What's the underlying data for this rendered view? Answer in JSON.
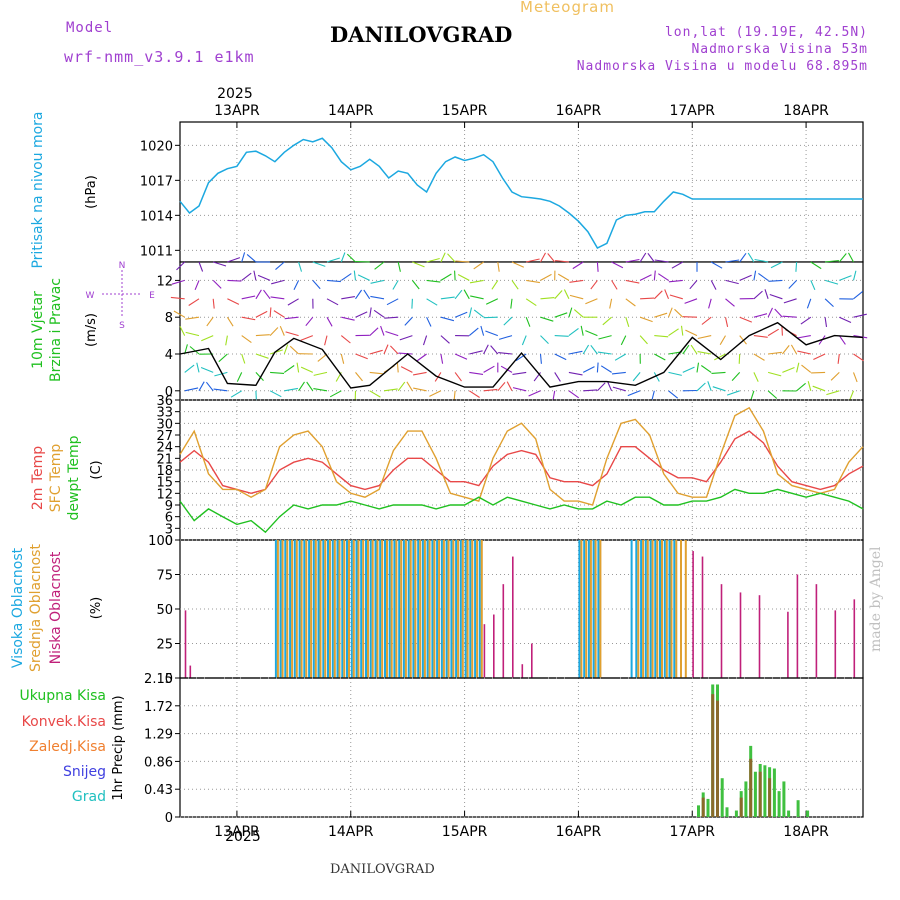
{
  "header": {
    "title": "DANILOVGRAD",
    "subtitle": "Meteogram",
    "model_label": "Model",
    "model_name": "wrf-nmm_v3.9.1 e1km",
    "info": [
      "lon,lat (19.19E, 42.5N)",
      "Nadmorska Visina 53m",
      "Nadmorska Visina u modelu 68.895m"
    ]
  },
  "footer": {
    "station": "DANILOVGRAD",
    "credit": "made by Angel"
  },
  "time_axis": {
    "year": "2025",
    "labels": [
      "13APR",
      "14APR",
      "15APR",
      "16APR",
      "17APR",
      "18APR"
    ],
    "start": "2025-04-12 12:00",
    "end": "2025-04-18 12:00"
  },
  "colors": {
    "pressure": "#1ca8e0",
    "temp2m": "#e84848",
    "sfc": "#e0a030",
    "dewpt": "#20c020",
    "wind": "#000000",
    "high_cloud": "#1ca8e0",
    "mid_cloud": "#e0a030",
    "low_cloud": "#c0207a",
    "total_precip": "#40c040",
    "conv_precip": "#e84848"
  },
  "chart_data": [
    {
      "type": "line",
      "ylabel": [
        "Pritisak na nivou mora",
        "(hPa)"
      ],
      "yticks": [
        1011,
        1014,
        1017,
        1020
      ],
      "ylim": [
        1010,
        1022
      ],
      "series": [
        {
          "name": "Pritisak na nivou mora",
          "x_hours": [
            0,
            2,
            4,
            6,
            8,
            10,
            12,
            14,
            16,
            18,
            20,
            22,
            24,
            26,
            28,
            30,
            32,
            34,
            36,
            38,
            40,
            42,
            44,
            46,
            48,
            50,
            52,
            54,
            56,
            58,
            60,
            62,
            64,
            66,
            68,
            70,
            72,
            74,
            76,
            78,
            80,
            82,
            84,
            86,
            88,
            90,
            92,
            94,
            96,
            98,
            100,
            102,
            104,
            106,
            108,
            110,
            112,
            114,
            116,
            118,
            120,
            122,
            124,
            126,
            128,
            130,
            132,
            134,
            136,
            138,
            140,
            142,
            144
          ],
          "values": [
            1015.2,
            1014.2,
            1014.8,
            1016.8,
            1017.6,
            1018.0,
            1018.2,
            1019.4,
            1019.5,
            1019.1,
            1018.6,
            1019.4,
            1020.0,
            1020.5,
            1020.3,
            1020.6,
            1019.8,
            1018.6,
            1017.9,
            1018.2,
            1018.8,
            1018.2,
            1017.2,
            1017.8,
            1017.6,
            1016.6,
            1016.0,
            1017.6,
            1018.6,
            1019.0,
            1018.7,
            1018.9,
            1019.2,
            1018.6,
            1017.2,
            1016.0,
            1015.6,
            1015.5,
            1015.4,
            1015.2,
            1014.8,
            1014.2,
            1013.5,
            1012.6,
            1011.2,
            1011.6,
            1013.6,
            1014.0,
            1014.1,
            1014.3,
            1014.3,
            1015.2,
            1016.0,
            1015.8,
            1015.4,
            1015.4,
            1015.4,
            1015.4,
            1015.4,
            1015.4,
            1015.4,
            1015.4,
            1015.4,
            1015.4,
            1015.4,
            1015.4,
            1015.4,
            1015.4,
            1015.4,
            1015.4,
            1015.4,
            1015.4,
            1015.4
          ]
        }
      ]
    },
    {
      "type": "line",
      "ylabel": [
        "10m Vjetar",
        "Brzina i Pravac",
        "(m/s)"
      ],
      "compass": {
        "n": "N",
        "s": "S",
        "e": "E",
        "w": "W"
      },
      "yticks": [
        0,
        4,
        8,
        12
      ],
      "ylim": [
        -1,
        14
      ],
      "series": [
        {
          "name": "10m Vjetar",
          "x_hours": [
            0,
            6,
            10,
            16,
            20,
            24,
            30,
            36,
            40,
            48,
            54,
            60,
            66,
            72,
            78,
            84,
            90,
            96,
            102,
            108,
            114,
            120,
            126,
            132,
            138,
            144
          ],
          "values": [
            4.0,
            4.6,
            0.8,
            0.6,
            4.2,
            5.7,
            4.5,
            0.3,
            0.6,
            4.0,
            1.6,
            0.4,
            0.4,
            4.1,
            0.4,
            1.0,
            1.0,
            0.6,
            2.0,
            5.8,
            3.4,
            6.0,
            7.4,
            5.0,
            6.0,
            5.8
          ]
        }
      ],
      "wind_rows": [
        0,
        2,
        4,
        6,
        8,
        10,
        12,
        14
      ]
    },
    {
      "type": "line",
      "ylabel": [
        "2m Temp",
        "SFC Temp",
        "dewpt Temp",
        "(C)"
      ],
      "yticks": [
        0,
        3,
        6,
        9,
        12,
        15,
        18,
        21,
        24,
        27,
        30,
        33,
        36
      ],
      "ylim": [
        0,
        36
      ],
      "series": [
        {
          "name": "2m Temp",
          "x_hours": [
            0,
            3,
            6,
            9,
            12,
            15,
            18,
            21,
            24,
            27,
            30,
            33,
            36,
            39,
            42,
            45,
            48,
            51,
            54,
            57,
            60,
            63,
            66,
            69,
            72,
            75,
            78,
            81,
            84,
            87,
            90,
            93,
            96,
            99,
            102,
            105,
            108,
            111,
            114,
            117,
            120,
            123,
            126,
            129,
            132,
            135,
            138,
            141,
            144
          ],
          "values": [
            20,
            23,
            20,
            14,
            13,
            12,
            13,
            18,
            20,
            21,
            20,
            17,
            14,
            13,
            14,
            18,
            21,
            21,
            18,
            15,
            15,
            14,
            19,
            22,
            23,
            22,
            16,
            15,
            15,
            14,
            17,
            24,
            24,
            21,
            18,
            16,
            16,
            15,
            20,
            26,
            28,
            25,
            19,
            15,
            14,
            13,
            14,
            17,
            19
          ]
        },
        {
          "name": "SFC Temp",
          "x_hours": [
            0,
            3,
            6,
            9,
            12,
            15,
            18,
            21,
            24,
            27,
            30,
            33,
            36,
            39,
            42,
            45,
            48,
            51,
            54,
            57,
            60,
            63,
            66,
            69,
            72,
            75,
            78,
            81,
            84,
            87,
            90,
            93,
            96,
            99,
            102,
            105,
            108,
            111,
            114,
            117,
            120,
            123,
            126,
            129,
            132,
            135,
            138,
            141,
            144
          ],
          "values": [
            22,
            28,
            17,
            13,
            13,
            11,
            13,
            24,
            27,
            28,
            24,
            15,
            12,
            11,
            13,
            23,
            28,
            28,
            21,
            12,
            11,
            10,
            21,
            28,
            30,
            26,
            13,
            10,
            10,
            9,
            21,
            30,
            31,
            27,
            17,
            12,
            11,
            11,
            22,
            32,
            34,
            28,
            17,
            14,
            13,
            12,
            13,
            20,
            24
          ]
        },
        {
          "name": "dewpt Temp",
          "x_hours": [
            0,
            3,
            6,
            9,
            12,
            15,
            18,
            21,
            24,
            27,
            30,
            33,
            36,
            39,
            42,
            45,
            48,
            51,
            54,
            57,
            60,
            63,
            66,
            69,
            72,
            75,
            78,
            81,
            84,
            87,
            90,
            93,
            96,
            99,
            102,
            105,
            108,
            111,
            114,
            117,
            120,
            123,
            126,
            129,
            132,
            135,
            138,
            141,
            144
          ],
          "values": [
            10,
            5,
            8,
            6,
            4,
            5,
            2,
            6,
            9,
            8,
            9,
            9,
            10,
            9,
            8,
            9,
            9,
            9,
            8,
            9,
            9,
            11,
            9,
            11,
            10,
            9,
            8,
            9,
            8,
            8,
            10,
            9,
            11,
            11,
            9,
            9,
            10,
            10,
            11,
            13,
            12,
            12,
            13,
            12,
            11,
            12,
            11,
            10,
            8
          ]
        }
      ]
    },
    {
      "type": "bar",
      "ylabel": [
        "Visoka Oblacnost",
        "Srednja Oblacnost",
        "Niska Oblacnost",
        "(%)"
      ],
      "yticks": [
        0,
        25,
        50,
        75,
        100
      ],
      "ylim": [
        0,
        100
      ],
      "series": [
        {
          "name": "Visoka Oblacnost",
          "ranges": [
            [
              20,
              63,
              100
            ],
            [
              84,
              88,
              100
            ],
            [
              95,
              104,
              100
            ]
          ]
        },
        {
          "name": "Srednja Oblacnost",
          "ranges": [
            [
              20,
              63,
              100
            ],
            [
              84,
              88,
              100
            ],
            [
              96,
              106,
              100
            ]
          ]
        },
        {
          "name": "Niska Oblacnost",
          "points": [
            [
              1,
              49
            ],
            [
              2,
              9
            ],
            [
              64,
              39
            ],
            [
              66,
              46
            ],
            [
              68,
              68
            ],
            [
              70,
              88
            ],
            [
              72,
              10
            ],
            [
              74,
              25
            ],
            [
              108,
              92
            ],
            [
              110,
              88
            ],
            [
              114,
              68
            ],
            [
              118,
              62
            ],
            [
              122,
              60
            ],
            [
              128,
              48
            ],
            [
              130,
              75
            ],
            [
              134,
              68
            ],
            [
              138,
              49
            ],
            [
              142,
              57
            ]
          ]
        }
      ]
    },
    {
      "type": "bar",
      "ylabel": [
        "1hr Precip (mm)"
      ],
      "legend": [
        "Ukupna Kisa",
        "Konvek.Kisa",
        "Zaledj.Kisa",
        "Snijeg",
        "Grad"
      ],
      "yticks": [
        0,
        0.43,
        0.86,
        1.29,
        1.72,
        2.15
      ],
      "ylim": [
        0,
        2.15
      ],
      "series": [
        {
          "name": "Ukupna Kisa",
          "points": [
            [
              109,
              0.18
            ],
            [
              110,
              0.38
            ],
            [
              111,
              0.28
            ],
            [
              112,
              2.05
            ],
            [
              113,
              2.05
            ],
            [
              114,
              0.6
            ],
            [
              115,
              0.15
            ],
            [
              117,
              0.1
            ],
            [
              118,
              0.4
            ],
            [
              119,
              0.55
            ],
            [
              120,
              1.1
            ],
            [
              121,
              0.7
            ],
            [
              122,
              0.82
            ],
            [
              123,
              0.8
            ],
            [
              124,
              0.77
            ],
            [
              125,
              0.75
            ],
            [
              126,
              0.4
            ],
            [
              127,
              0.55
            ],
            [
              128,
              0.1
            ],
            [
              130,
              0.26
            ],
            [
              132,
              0.1
            ]
          ]
        },
        {
          "name": "Konvek.Kisa",
          "points": [
            [
              110,
              0.3
            ],
            [
              112,
              1.9
            ],
            [
              113,
              1.8
            ],
            [
              118,
              0.3
            ],
            [
              120,
              0.9
            ],
            [
              122,
              0.7
            ],
            [
              124,
              0.6
            ]
          ]
        }
      ]
    }
  ]
}
